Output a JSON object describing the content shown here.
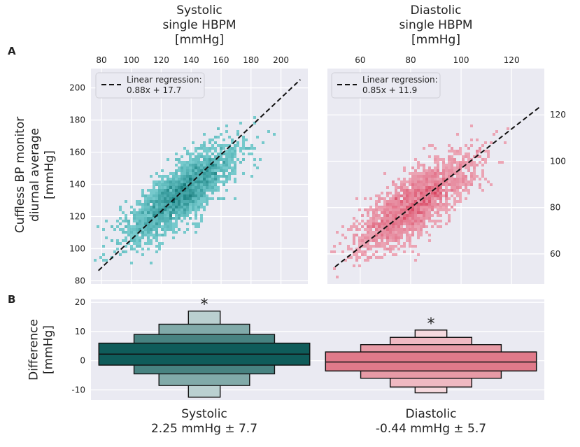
{
  "panel_labels": [
    "A",
    "B"
  ],
  "colors": {
    "panel_bg": "#eaeaf2",
    "grid": "#ffffff",
    "systolic": "#1fbfbf",
    "systolic_dark": "#0b6f6f",
    "diastolic": "#f07a90",
    "diastolic_dark": "#d84460",
    "box_sys": "#0f5c5a",
    "box_dia": "#e07a8a"
  },
  "chart_data": [
    {
      "type": "heatmap",
      "name": "systolic",
      "title": "Systolic single HBPM [mmHg]",
      "title_lines": [
        "Systolic",
        "single HBPM",
        "[mmHg]"
      ],
      "ylabel_lines": [
        "Cuffless BP monitor",
        "diurnal average",
        "[mmHg]"
      ],
      "xlim": [
        73,
        218
      ],
      "ylim": [
        78,
        212
      ],
      "xticks": [
        80,
        100,
        120,
        140,
        160,
        180,
        200
      ],
      "yticks": [
        80,
        100,
        120,
        140,
        160,
        180,
        200
      ],
      "regression": {
        "slope": 0.88,
        "intercept": 17.7,
        "x_range": [
          78,
          213
        ]
      },
      "legend_lines": [
        "Linear regression:",
        "0.88x + 17.7"
      ],
      "cloud": {
        "mean_x": 133,
        "mean_y": 134,
        "sd_x": 18,
        "sd_y": 14.5,
        "corr": 0.8,
        "n_points": 2600
      }
    },
    {
      "type": "heatmap",
      "name": "diastolic",
      "title": "Diastolic single HBPM [mmHg]",
      "title_lines": [
        "Diastolic",
        "single HBPM",
        "[mmHg]"
      ],
      "xlim": [
        47,
        133
      ],
      "ylim": [
        47,
        140
      ],
      "xticks": [
        60,
        80,
        100,
        120
      ],
      "yticks": [
        60,
        80,
        100,
        120
      ],
      "regression": {
        "slope": 0.85,
        "intercept": 11.9,
        "x_range": [
          50,
          131
        ]
      },
      "legend_lines": [
        "Linear regression:",
        "0.85x + 11.9"
      ],
      "cloud": {
        "mean_x": 82,
        "mean_y": 82,
        "sd_x": 11.5,
        "sd_y": 10.2,
        "corr": 0.78,
        "n_points": 2400
      }
    },
    {
      "type": "boxen",
      "name": "difference",
      "ylabel_lines": [
        "Difference",
        "[mmHg]"
      ],
      "ylim": [
        -13.5,
        21
      ],
      "yticks": [
        -10,
        0,
        10,
        20
      ],
      "groups": [
        {
          "category": "Systolic",
          "label_lines": [
            "Systolic",
            "2.25 mmHg ± 7.7"
          ],
          "star": "*",
          "levels": [
            {
              "low": -1.5,
              "high": 6,
              "half_width": 0.465
            },
            {
              "low": -4.5,
              "high": 9,
              "half_width": 0.31
            },
            {
              "low": -8.5,
              "high": 12.5,
              "half_width": 0.2
            },
            {
              "low": -12.5,
              "high": 17,
              "half_width": 0.07
            }
          ],
          "median": 2.25
        },
        {
          "category": "Diastolic",
          "label_lines": [
            "Diastolic",
            "-0.44 mmHg ± 5.7"
          ],
          "star": "*",
          "levels": [
            {
              "low": -3.5,
              "high": 3,
              "half_width": 0.465
            },
            {
              "low": -6,
              "high": 5.5,
              "half_width": 0.31
            },
            {
              "low": -9,
              "high": 8,
              "half_width": 0.18
            },
            {
              "low": -11,
              "high": 10.5,
              "half_width": 0.07
            }
          ],
          "median": -0.44
        }
      ]
    }
  ]
}
